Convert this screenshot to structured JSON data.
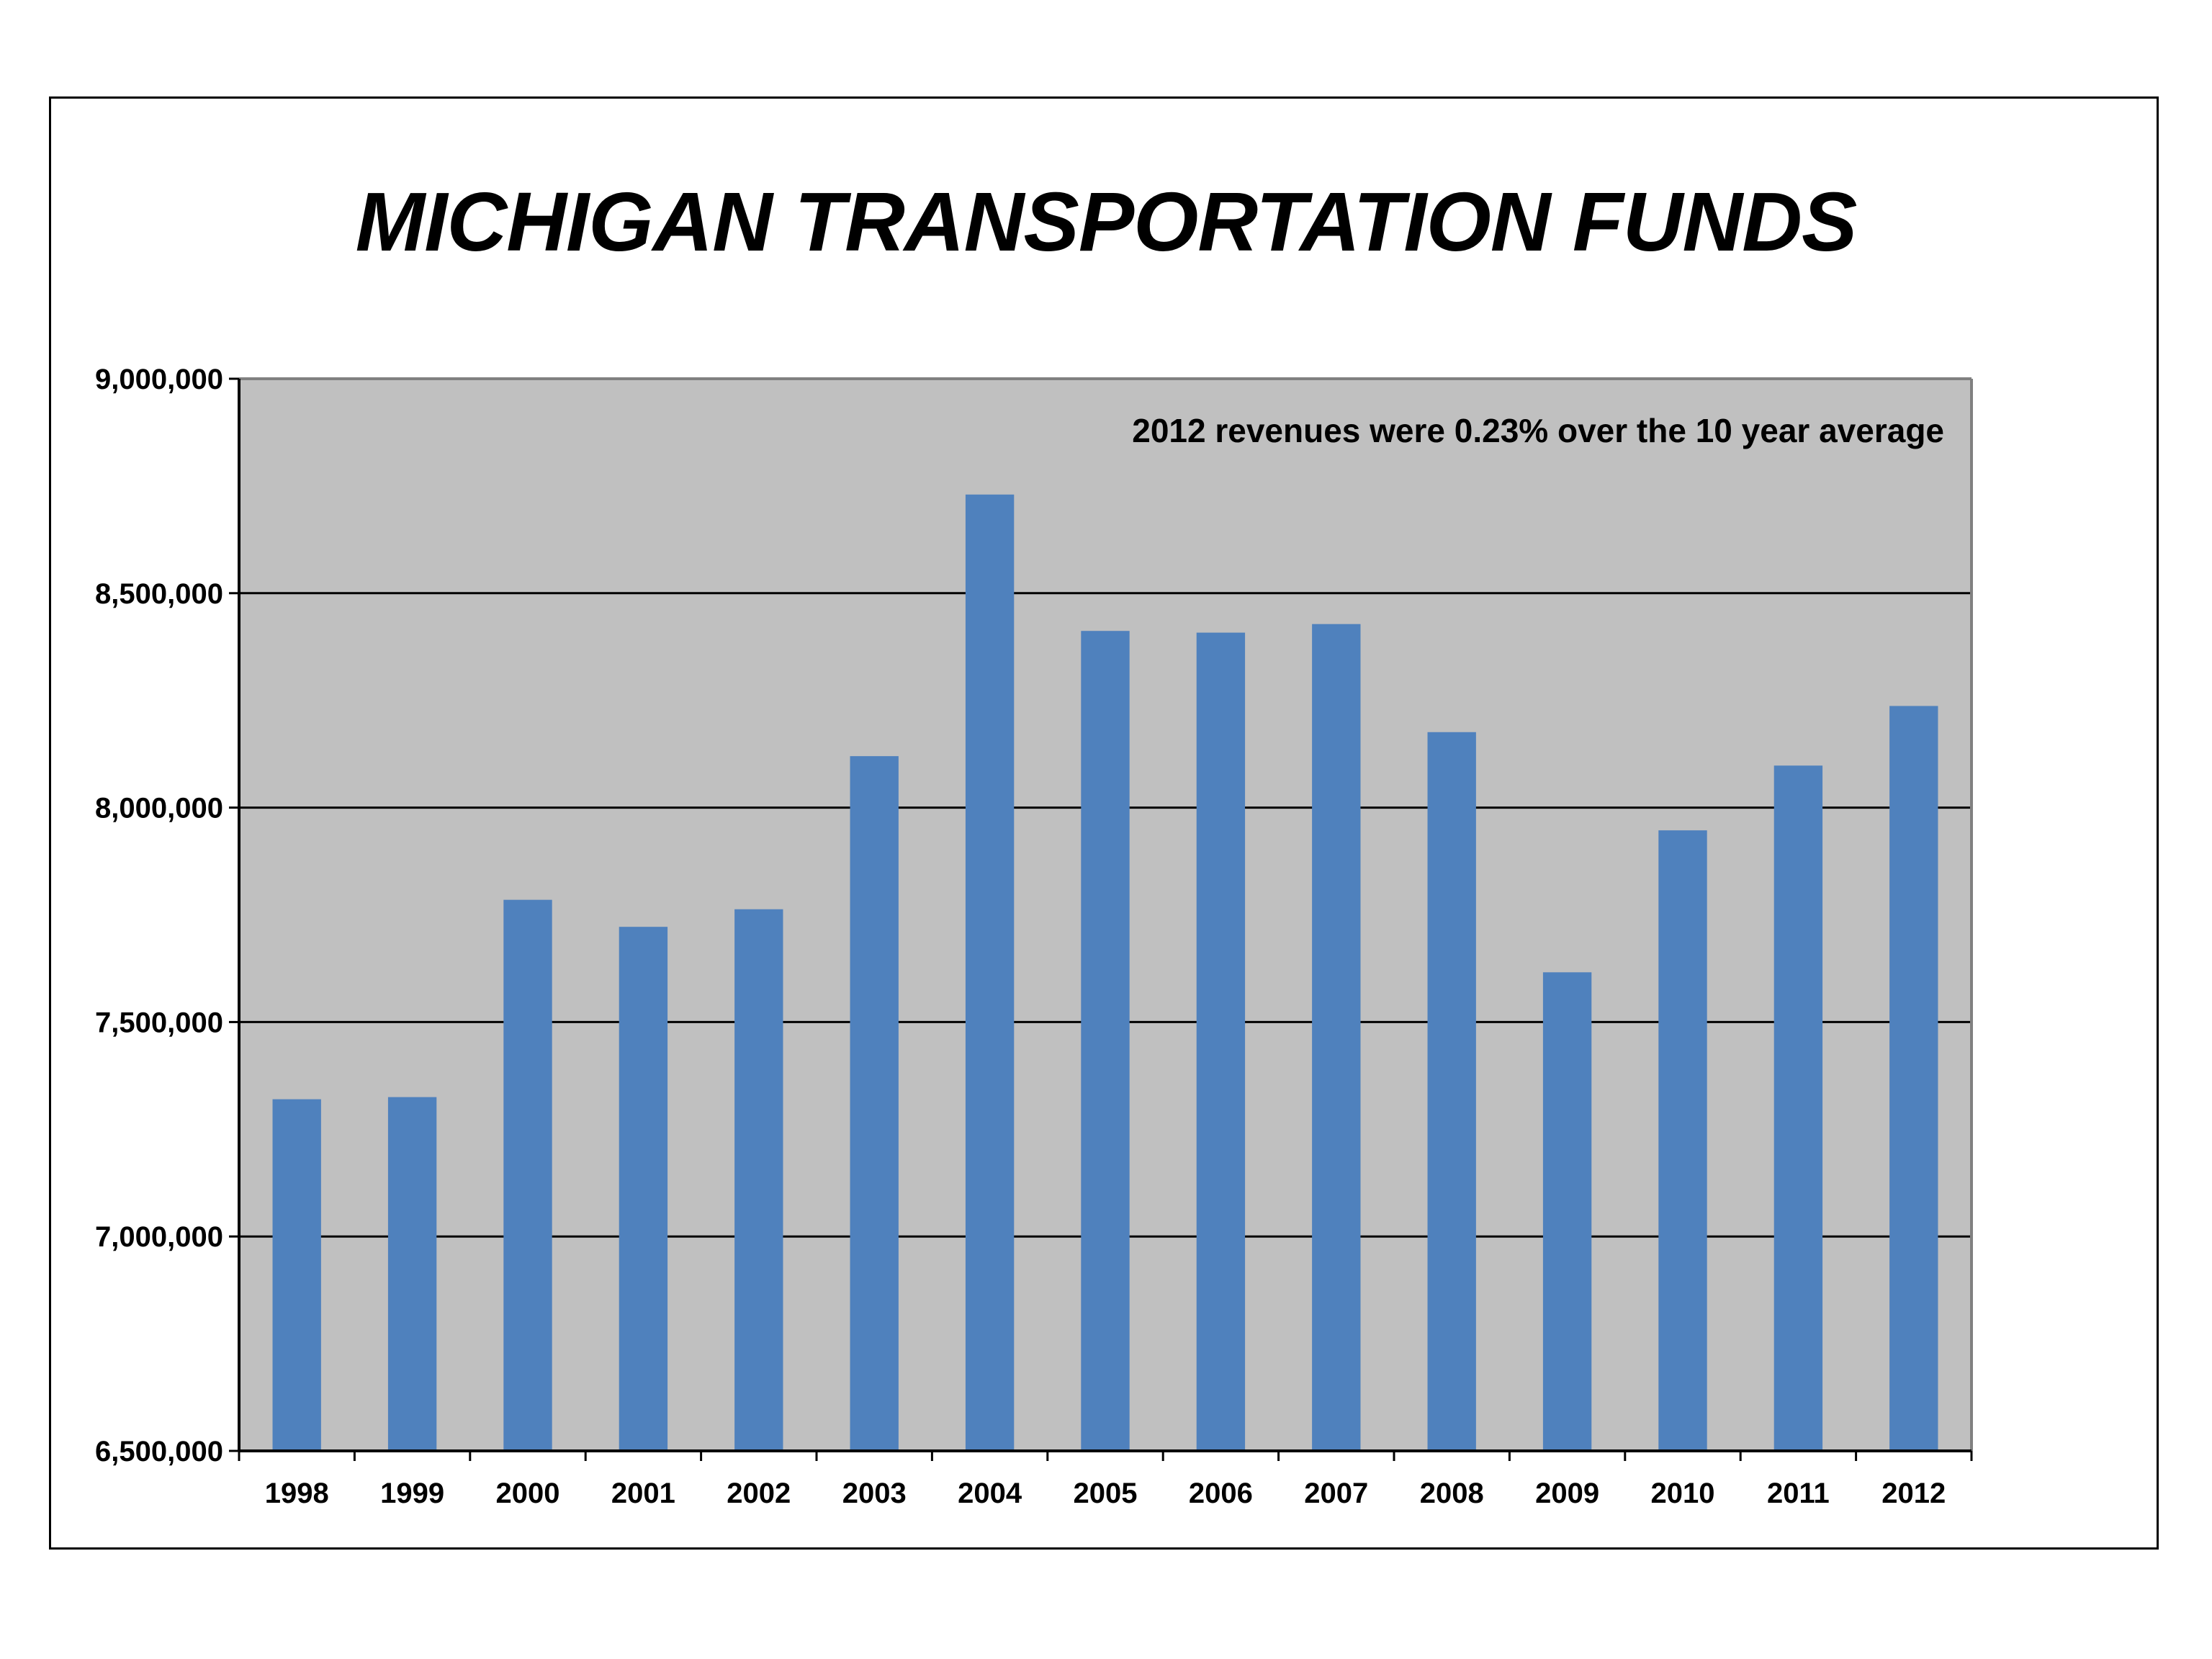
{
  "chart_data": {
    "type": "bar",
    "title": "MICHIGAN TRANSPORTATION FUNDS",
    "annotation": "2012 revenues were 0.23% over the 10 year average",
    "categories": [
      "1998",
      "1999",
      "2000",
      "2001",
      "2002",
      "2003",
      "2004",
      "2005",
      "2006",
      "2007",
      "2008",
      "2009",
      "2010",
      "2011",
      "2012"
    ],
    "values": [
      7320000,
      7325000,
      7785000,
      7722000,
      7763000,
      8120000,
      8730000,
      8412000,
      8408000,
      8428000,
      8176000,
      7616000,
      7947000,
      8098000,
      8237000
    ],
    "ylim": [
      6500000,
      9000000
    ],
    "yticks": [
      6500000,
      7000000,
      7500000,
      8000000,
      8500000,
      9000000
    ],
    "ytick_labels": [
      "6,500,000",
      "7,000,000",
      "7,500,000",
      "8,000,000",
      "8,500,000",
      "9,000,000"
    ],
    "xlabel": "",
    "ylabel": "",
    "grid": true,
    "colors": {
      "bar": "#4f81bd",
      "plot_background": "#c0c0c0",
      "gridline": "#000000",
      "axis": "#808080"
    }
  }
}
